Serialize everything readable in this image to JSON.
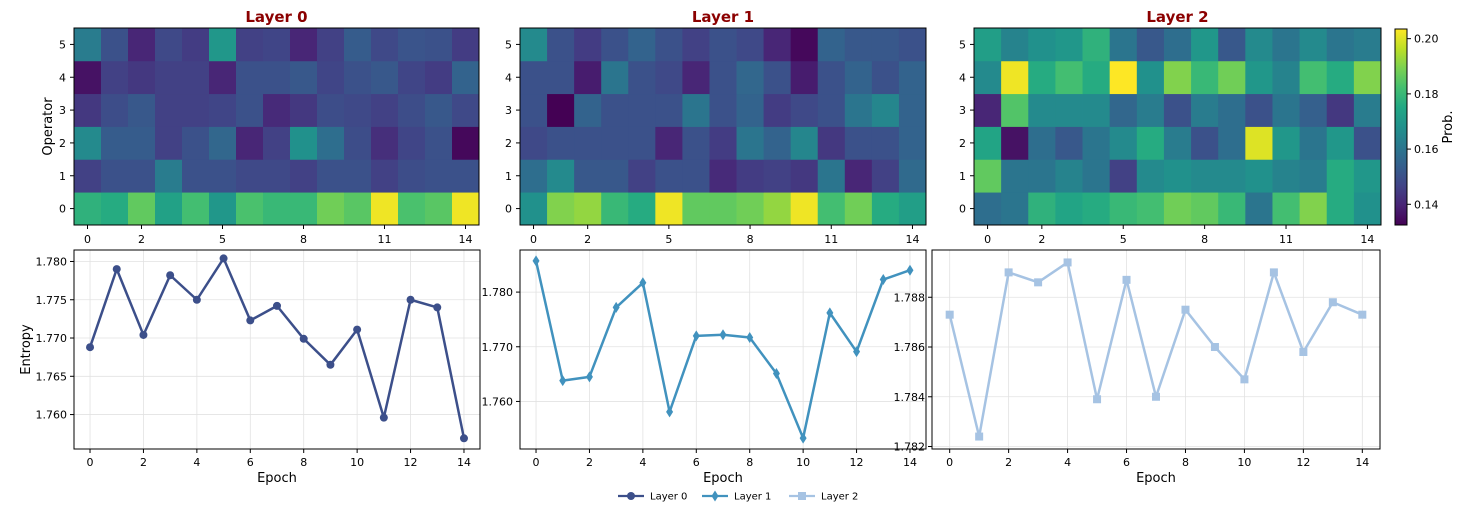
{
  "chart_data": [
    {
      "type": "heatmap",
      "title": "Layer 0",
      "ylabel": "Operator",
      "x": [
        0,
        1,
        2,
        3,
        4,
        5,
        6,
        7,
        8,
        9,
        10,
        11,
        12,
        13,
        14
      ],
      "x_tick_labels": [
        "0",
        "2",
        "5",
        "8",
        "11",
        "14"
      ],
      "y": [
        0,
        1,
        2,
        3,
        4,
        5
      ],
      "values": [
        [
          0.178,
          0.176,
          0.186,
          0.173,
          0.182,
          0.17,
          0.183,
          0.18,
          0.18,
          0.188,
          0.185,
          0.202,
          0.183,
          0.185,
          0.202
        ],
        [
          0.146,
          0.15,
          0.15,
          0.162,
          0.15,
          0.15,
          0.148,
          0.148,
          0.146,
          0.15,
          0.15,
          0.146,
          0.149,
          0.15,
          0.15
        ],
        [
          0.166,
          0.153,
          0.153,
          0.146,
          0.15,
          0.156,
          0.14,
          0.146,
          0.168,
          0.158,
          0.149,
          0.142,
          0.147,
          0.15,
          0.134
        ],
        [
          0.144,
          0.149,
          0.152,
          0.146,
          0.146,
          0.147,
          0.15,
          0.141,
          0.144,
          0.149,
          0.148,
          0.146,
          0.149,
          0.152,
          0.148
        ],
        [
          0.136,
          0.146,
          0.144,
          0.146,
          0.146,
          0.14,
          0.15,
          0.15,
          0.152,
          0.147,
          0.15,
          0.152,
          0.147,
          0.145,
          0.155
        ],
        [
          0.162,
          0.15,
          0.14,
          0.148,
          0.145,
          0.17,
          0.146,
          0.147,
          0.14,
          0.146,
          0.153,
          0.148,
          0.151,
          0.15,
          0.145
        ]
      ]
    },
    {
      "type": "heatmap",
      "title": "Layer 1",
      "x": [
        0,
        1,
        2,
        3,
        4,
        5,
        6,
        7,
        8,
        9,
        10,
        11,
        12,
        13,
        14
      ],
      "x_tick_labels": [
        "0",
        "2",
        "5",
        "8",
        "11",
        "14"
      ],
      "y": [
        0,
        1,
        2,
        3,
        4,
        5
      ],
      "values": [
        [
          0.168,
          0.19,
          0.192,
          0.18,
          0.176,
          0.202,
          0.186,
          0.186,
          0.188,
          0.192,
          0.202,
          0.182,
          0.188,
          0.176,
          0.172
        ],
        [
          0.158,
          0.166,
          0.152,
          0.152,
          0.146,
          0.15,
          0.15,
          0.141,
          0.145,
          0.146,
          0.144,
          0.16,
          0.14,
          0.146,
          0.157
        ],
        [
          0.148,
          0.15,
          0.15,
          0.15,
          0.15,
          0.14,
          0.15,
          0.145,
          0.16,
          0.155,
          0.165,
          0.144,
          0.15,
          0.15,
          0.155
        ],
        [
          0.15,
          0.132,
          0.155,
          0.15,
          0.15,
          0.15,
          0.16,
          0.15,
          0.155,
          0.145,
          0.148,
          0.15,
          0.16,
          0.165,
          0.155
        ],
        [
          0.15,
          0.15,
          0.138,
          0.16,
          0.15,
          0.148,
          0.14,
          0.15,
          0.156,
          0.15,
          0.138,
          0.15,
          0.155,
          0.15,
          0.155
        ],
        [
          0.166,
          0.15,
          0.145,
          0.15,
          0.155,
          0.15,
          0.146,
          0.15,
          0.148,
          0.14,
          0.134,
          0.155,
          0.152,
          0.152,
          0.15
        ]
      ]
    },
    {
      "type": "heatmap",
      "title": "Layer 2",
      "x": [
        0,
        1,
        2,
        3,
        4,
        5,
        6,
        7,
        8,
        9,
        10,
        11,
        12,
        13,
        14
      ],
      "x_tick_labels": [
        "0",
        "2",
        "5",
        "8",
        "11",
        "14"
      ],
      "y": [
        0,
        1,
        2,
        3,
        4,
        5
      ],
      "values": [
        [
          0.158,
          0.16,
          0.178,
          0.174,
          0.176,
          0.18,
          0.182,
          0.188,
          0.186,
          0.18,
          0.16,
          0.182,
          0.19,
          0.176,
          0.168
        ],
        [
          0.186,
          0.16,
          0.16,
          0.164,
          0.16,
          0.146,
          0.166,
          0.168,
          0.166,
          0.166,
          0.168,
          0.164,
          0.162,
          0.176,
          0.17
        ],
        [
          0.174,
          0.136,
          0.158,
          0.152,
          0.16,
          0.166,
          0.176,
          0.162,
          0.15,
          0.158,
          0.2,
          0.17,
          0.16,
          0.17,
          0.15
        ],
        [
          0.14,
          0.184,
          0.166,
          0.166,
          0.166,
          0.156,
          0.162,
          0.15,
          0.162,
          0.158,
          0.15,
          0.16,
          0.154,
          0.144,
          0.162
        ],
        [
          0.166,
          0.202,
          0.176,
          0.182,
          0.176,
          0.204,
          0.168,
          0.19,
          0.18,
          0.188,
          0.17,
          0.164,
          0.182,
          0.176,
          0.19
        ],
        [
          0.172,
          0.164,
          0.168,
          0.17,
          0.178,
          0.16,
          0.152,
          0.158,
          0.17,
          0.152,
          0.166,
          0.16,
          0.166,
          0.16,
          0.162
        ]
      ],
      "colorbar": {
        "label": "Prob.",
        "range": [
          0.1325,
          0.2035
        ],
        "ticks": [
          0.14,
          0.16,
          0.18,
          0.2
        ],
        "tick_labels": [
          "0.14",
          "0.16",
          "0.18",
          "0.20"
        ]
      }
    },
    {
      "type": "line",
      "xlabel": "Epoch",
      "ylabel": "Entropy",
      "x": [
        0,
        1,
        2,
        3,
        4,
        5,
        6,
        7,
        8,
        9,
        10,
        11,
        12,
        13,
        14
      ],
      "series": [
        {
          "name": "Layer 0",
          "values": [
            1.7688,
            1.779,
            1.7704,
            1.7782,
            1.775,
            1.7804,
            1.7723,
            1.7742,
            1.7699,
            1.7665,
            1.7711,
            1.7596,
            1.775,
            1.774,
            1.7569
          ],
          "color": "#3c4f8a",
          "marker": "circle"
        }
      ],
      "ylim": [
        1.7555,
        1.7815
      ],
      "y_ticks": [
        "1.760",
        "1.765",
        "1.770",
        "1.775",
        "1.780"
      ],
      "x_ticks": [
        "0",
        "2",
        "4",
        "6",
        "8",
        "10",
        "12",
        "14"
      ],
      "grid": true
    },
    {
      "type": "line",
      "xlabel": "Epoch",
      "x": [
        0,
        1,
        2,
        3,
        4,
        5,
        6,
        7,
        8,
        9,
        10,
        11,
        12,
        13,
        14
      ],
      "series": [
        {
          "name": "Layer 1",
          "values": [
            1.7857,
            1.7638,
            1.7645,
            1.7772,
            1.7817,
            1.7581,
            1.772,
            1.7722,
            1.7717,
            1.7651,
            1.7533,
            1.7762,
            1.7691,
            1.7823,
            1.784
          ],
          "color": "#4192be",
          "marker": "diamond"
        }
      ],
      "ylim": [
        1.7513,
        1.7877
      ],
      "y_ticks": [
        "1.760",
        "1.770",
        "1.780"
      ],
      "x_ticks": [
        "0",
        "2",
        "4",
        "6",
        "8",
        "10",
        "12",
        "14"
      ],
      "grid": true
    },
    {
      "type": "line",
      "xlabel": "Epoch",
      "x": [
        0,
        1,
        2,
        3,
        4,
        5,
        6,
        7,
        8,
        9,
        10,
        11,
        12,
        13,
        14
      ],
      "series": [
        {
          "name": "Layer 2",
          "values": [
            1.7873,
            1.7824,
            1.789,
            1.7886,
            1.7894,
            1.7839,
            1.7887,
            1.784,
            1.7875,
            1.786,
            1.7847,
            1.789,
            1.7858,
            1.7878,
            1.7873
          ],
          "color": "#a6c3e3",
          "marker": "square"
        }
      ],
      "ylim": [
        1.7819,
        1.7899
      ],
      "y_ticks": [
        "1.782",
        "1.784",
        "1.786",
        "1.788"
      ],
      "x_ticks": [
        "0",
        "2",
        "4",
        "6",
        "8",
        "10",
        "12",
        "14"
      ],
      "grid": true
    }
  ],
  "legend": [
    {
      "label": "Layer 0",
      "color": "#3c4f8a",
      "marker": "circle"
    },
    {
      "label": "Layer 1",
      "color": "#4192be",
      "marker": "diamond"
    },
    {
      "label": "Layer 2",
      "color": "#a6c3e3",
      "marker": "square"
    }
  ],
  "colors": {
    "title": "#8b0000",
    "grid": "#e2e2e2"
  }
}
